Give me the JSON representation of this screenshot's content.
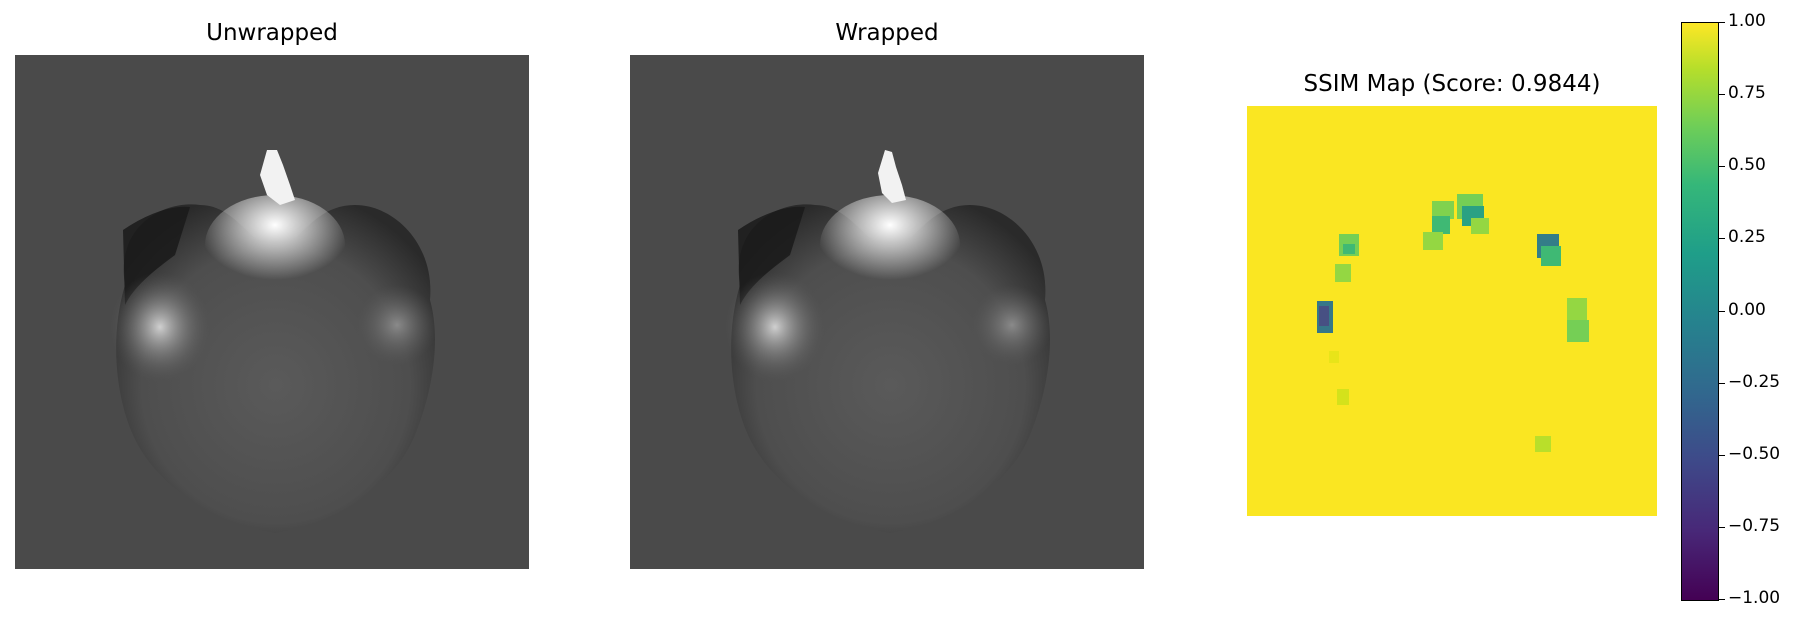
{
  "panels": [
    {
      "title": "Unwrapped"
    },
    {
      "title": "Wrapped"
    },
    {
      "title": "SSIM Map (Score: 0.9844)"
    }
  ],
  "colorbar": {
    "ticks": [
      "1.00",
      "0.75",
      "0.50",
      "0.25",
      "0.00",
      "−0.25",
      "−0.50",
      "−0.75",
      "−1.00"
    ],
    "colormap": "viridis",
    "range": [
      -1.0,
      1.0
    ]
  },
  "colors": {
    "mri_background": "#4a4a4a",
    "ssim_background": "#fae622"
  }
}
